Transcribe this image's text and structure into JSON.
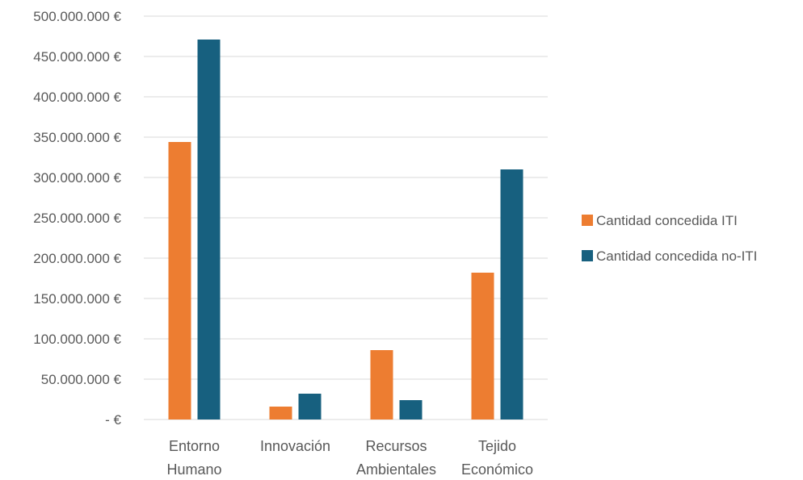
{
  "chart_data": {
    "type": "bar",
    "title": "",
    "xlabel": "",
    "ylabel": "",
    "categories": [
      [
        "Entorno",
        "Humano"
      ],
      [
        "Innovación"
      ],
      [
        "Recursos",
        "Ambientales"
      ],
      [
        "Tejido",
        "Económico"
      ]
    ],
    "series": [
      {
        "name": "Cantidad concedida ITI",
        "color": "#ED7D31",
        "values": [
          344000000,
          16000000,
          86000000,
          182000000
        ]
      },
      {
        "name": "Cantidad concedida no-ITI",
        "color": "#17607F",
        "values": [
          471000000,
          32000000,
          24000000,
          310000000
        ]
      }
    ],
    "ylim": [
      0,
      500000000
    ],
    "yticks": [
      {
        "value": 0,
        "label": "-   €"
      },
      {
        "value": 50000000,
        "label": "50.000.000 €"
      },
      {
        "value": 100000000,
        "label": "100.000.000 €"
      },
      {
        "value": 150000000,
        "label": "150.000.000 €"
      },
      {
        "value": 200000000,
        "label": "200.000.000 €"
      },
      {
        "value": 250000000,
        "label": "250.000.000 €"
      },
      {
        "value": 300000000,
        "label": "300.000.000 €"
      },
      {
        "value": 350000000,
        "label": "350.000.000 €"
      },
      {
        "value": 400000000,
        "label": "400.000.000 €"
      },
      {
        "value": 450000000,
        "label": "450.000.000 €"
      },
      {
        "value": 500000000,
        "label": "500.000.000 €"
      }
    ],
    "grid": true,
    "gridline_color": "#D9D9D9",
    "legend_position": "right"
  }
}
